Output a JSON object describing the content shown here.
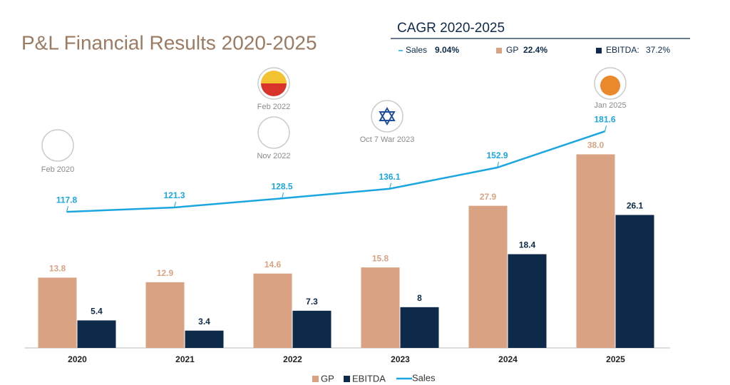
{
  "chart_data": {
    "type": "bar",
    "title": "P&L Financial Results 2020-2025",
    "categories": [
      "2020",
      "2021",
      "2022",
      "2023",
      "2024",
      "2025"
    ],
    "series": [
      {
        "name": "GP",
        "color": "#d9a383",
        "values": [
          13.8,
          12.9,
          14.6,
          15.8,
          27.9,
          38.0
        ],
        "value_labels": [
          "13.8",
          "12.9",
          "14.6",
          "15.8",
          "27.9",
          "38.0"
        ]
      },
      {
        "name": "EBITDA",
        "color": "#0d2a4a",
        "values": [
          5.4,
          3.4,
          7.3,
          8,
          18.4,
          26.1
        ]
      },
      {
        "name": "Sales",
        "type": "line",
        "axis": "y2",
        "color": "#1ba6e0",
        "values": [
          117.8,
          121.3,
          128.5,
          136.1,
          152.9,
          181.6
        ]
      }
    ],
    "ylim": [
      0,
      55
    ],
    "y2lim": [
      10,
      232
    ],
    "annotations": [
      "Feb 2020",
      "Feb 2022",
      "Nov 2022",
      "Oct 7  War 2023",
      "Jan 2025"
    ],
    "cagr": {
      "title": "CAGR 2020-2025",
      "items": [
        {
          "label": "Sales",
          "value": "9.04%"
        },
        {
          "label": "GP",
          "value": "22.4%"
        },
        {
          "label": "EBITDA:",
          "value": "37.2%"
        }
      ]
    }
  }
}
